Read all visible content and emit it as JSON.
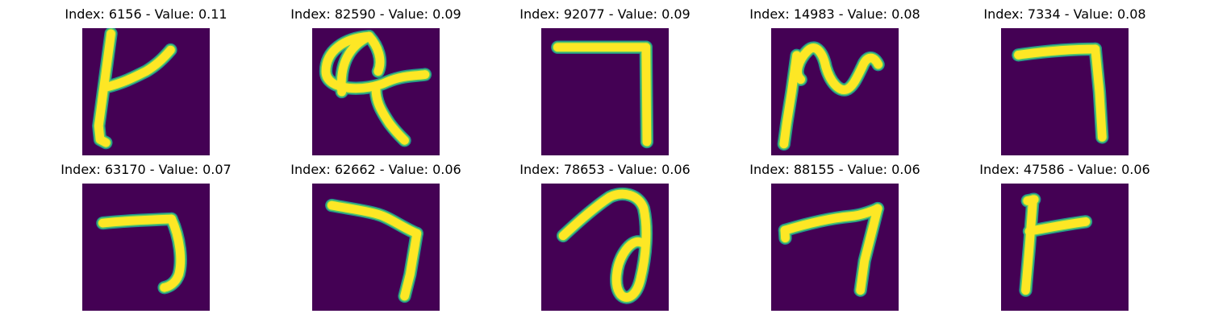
{
  "chart_data": {
    "type": "image-grid",
    "colormap": "viridis",
    "background_color": "#440154",
    "stroke_color": "#fde725",
    "edge_colors": [
      "#21918c",
      "#5ec962"
    ],
    "grid": {
      "rows": 2,
      "cols": 5
    },
    "panels": [
      {
        "title": "Index: 6156 - Value: 0.11",
        "index": 6156,
        "value": 0.11,
        "glyph": "4-like"
      },
      {
        "title": "Index: 82590 - Value: 0.09",
        "index": 82590,
        "value": 0.09,
        "glyph": "loop-cross"
      },
      {
        "title": "Index: 92077 - Value: 0.09",
        "index": 92077,
        "value": 0.09,
        "glyph": "7"
      },
      {
        "title": "Index: 14983 - Value: 0.08",
        "index": 14983,
        "value": 0.08,
        "glyph": "squiggle"
      },
      {
        "title": "Index: 7334 - Value: 0.08",
        "index": 7334,
        "value": 0.08,
        "glyph": "7"
      },
      {
        "title": "Index: 63170 - Value: 0.07",
        "index": 63170,
        "value": 0.07,
        "glyph": "7"
      },
      {
        "title": "Index: 62662 - Value: 0.06",
        "index": 62662,
        "value": 0.06,
        "glyph": "7"
      },
      {
        "title": "Index: 78653 - Value: 0.06",
        "index": 78653,
        "value": 0.06,
        "glyph": "loop"
      },
      {
        "title": "Index: 88155 - Value: 0.06",
        "index": 88155,
        "value": 0.06,
        "glyph": "7"
      },
      {
        "title": "Index: 47586 - Value: 0.06",
        "index": 47586,
        "value": 0.06,
        "glyph": "4-like"
      }
    ]
  }
}
